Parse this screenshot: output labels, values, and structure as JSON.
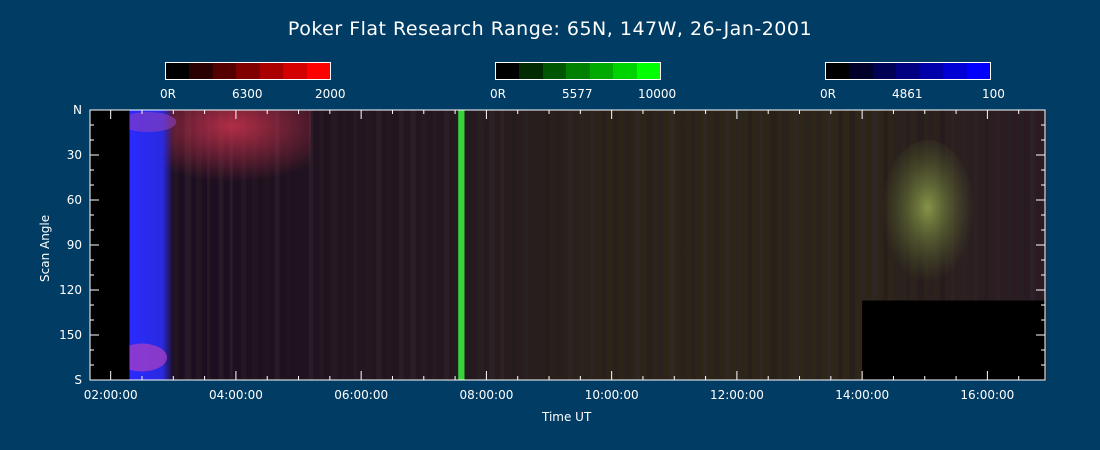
{
  "title": "Poker Flat Research Range: 65N, 147W, 26-Jan-2001",
  "colorbars": [
    {
      "name": "red-6300",
      "labels": [
        "0R",
        "6300",
        "2000"
      ],
      "colors": [
        "#000000",
        "#2a0000",
        "#550000",
        "#800000",
        "#aa0000",
        "#d40000",
        "#ff0000"
      ]
    },
    {
      "name": "green-5577",
      "labels": [
        "0R",
        "5577",
        "10000"
      ],
      "colors": [
        "#000000",
        "#002a00",
        "#005500",
        "#008000",
        "#00aa00",
        "#00d400",
        "#00ff00"
      ]
    },
    {
      "name": "blue-4861",
      "labels": [
        "0R",
        "4861",
        "100"
      ],
      "colors": [
        "#000000",
        "#00002a",
        "#000055",
        "#000080",
        "#0000aa",
        "#0000d4",
        "#0000ff"
      ]
    }
  ],
  "chart_data": {
    "type": "heatmap",
    "title": "Poker Flat Research Range: 65N, 147W, 26-Jan-2001",
    "xlabel": "Time UT",
    "ylabel": "Scan Angle",
    "x_range": [
      "01:40:00",
      "16:55:00"
    ],
    "y_range": [
      "N",
      "S"
    ],
    "x_ticks": [
      "02:00:00",
      "04:00:00",
      "06:00:00",
      "08:00:00",
      "10:00:00",
      "12:00:00",
      "14:00:00",
      "16:00:00"
    ],
    "x_tick_values_hours": [
      2,
      4,
      6,
      8,
      10,
      12,
      14,
      16
    ],
    "y_ticks": [
      "N",
      "30",
      "60",
      "90",
      "120",
      "150",
      "S"
    ],
    "y_tick_values": [
      0,
      30,
      60,
      90,
      120,
      150,
      180
    ],
    "x_min_hours": 1.67,
    "x_max_hours": 16.92,
    "y_min": 0,
    "y_max": 180,
    "features": [
      {
        "feature": "blue-emission-band",
        "start_hours": 2.3,
        "end_hours": 3.0,
        "color": "#2a2aff"
      },
      {
        "feature": "red-arc",
        "start_hours": 2.7,
        "end_hours": 5.2,
        "scan_start": 0,
        "scan_end": 40,
        "color": "#a02838"
      },
      {
        "feature": "green-arc",
        "start_hours": 7.55,
        "end_hours": 7.65,
        "color": "#3ad23a"
      },
      {
        "feature": "green-diffuse",
        "start_hours": 14.3,
        "end_hours": 15.8,
        "scan_start": 20,
        "scan_end": 120,
        "color": "#6a7a3a"
      },
      {
        "feature": "no-data-start",
        "start_hours": 1.67,
        "end_hours": 2.3,
        "color": "#000000"
      },
      {
        "feature": "no-data-end",
        "start_hours": 14.0,
        "end_hours": 16.92,
        "scan_start": 127,
        "scan_end": 180,
        "color": "#000000"
      }
    ]
  }
}
